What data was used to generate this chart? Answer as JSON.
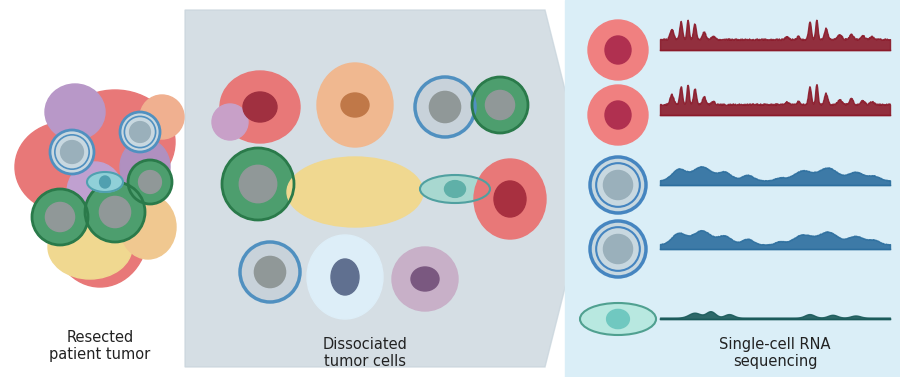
{
  "bg_color": "#ffffff",
  "arrow_bg_color": "#c8d4dc",
  "rna_seq_bg_color": "#daeef7",
  "label1": "Resected\npatient tumor",
  "label2": "Dissociated\ntumor cells",
  "label3": "Single-cell RNA\nsequencing",
  "label_fontsize": 10.5,
  "fig_w": 9.0,
  "fig_h": 3.77
}
